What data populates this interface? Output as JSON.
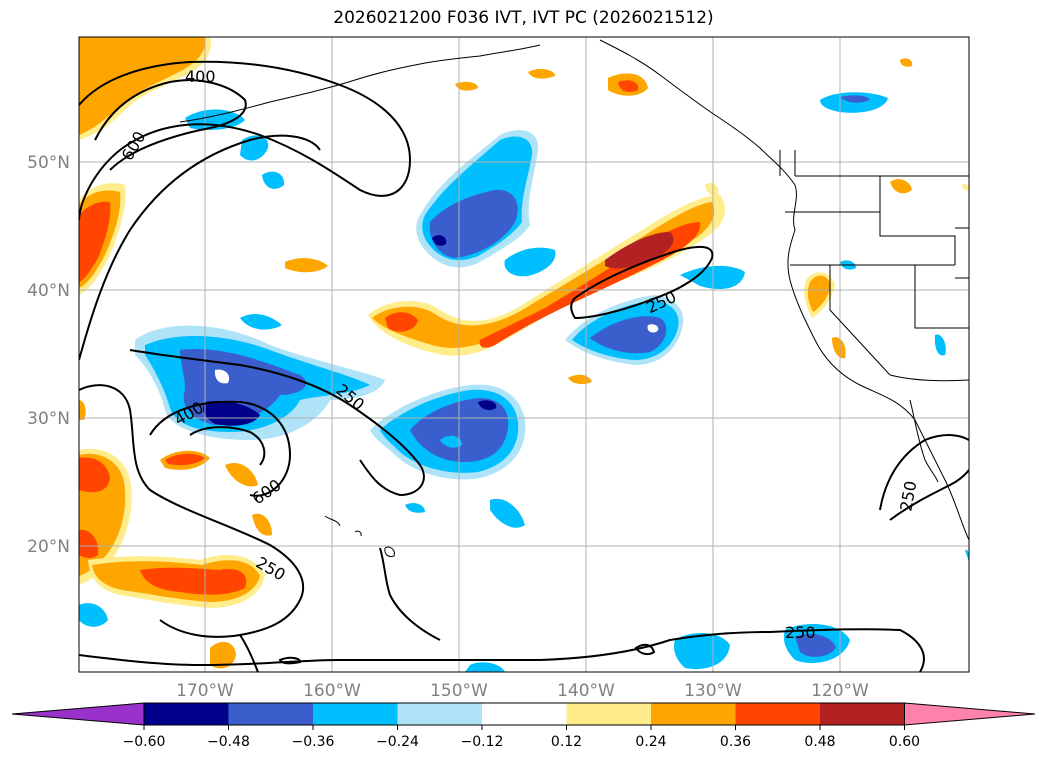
{
  "title": "2026021200 F036 IVT, IVT PC (2026021512)",
  "map": {
    "lat_labels": [
      "50°N",
      "40°N",
      "30°N",
      "20°N"
    ],
    "lon_labels": [
      "170°W",
      "160°W",
      "150°W",
      "140°W",
      "130°W",
      "120°W"
    ],
    "contour_labels": [
      "400",
      "600",
      "250",
      "250",
      "400",
      "600",
      "250",
      "250",
      "250"
    ]
  },
  "colorbar": {
    "ticks": [
      "−0.60",
      "−0.48",
      "−0.36",
      "−0.24",
      "−0.12",
      "0.12",
      "0.24",
      "0.36",
      "0.48",
      "0.60"
    ],
    "colors": [
      "#9932cc",
      "#00008b",
      "#3a5fcd",
      "#00bfff",
      "#aee3f8",
      "#ffffff",
      "#ffec8b",
      "#ffa500",
      "#ff4500",
      "#b22222",
      "#ff82ab"
    ]
  }
}
